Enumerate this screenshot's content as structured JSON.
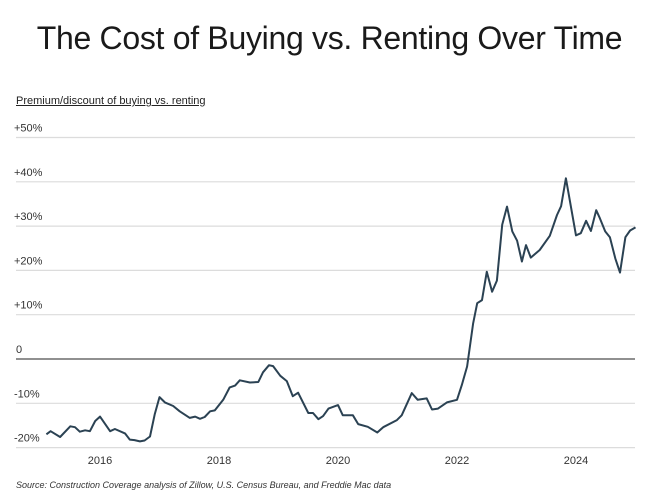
{
  "chart_data": {
    "type": "line",
    "title": "The Cost of Buying vs. Renting Over Time",
    "ylabel": "Premium/discount of buying vs. renting",
    "source": "Source: Construction Coverage analysis of Zillow, U.S. Census Bureau, and Freddie Mac data",
    "ylim": [
      -20,
      50
    ],
    "xlim": [
      2015.1,
      2025.0
    ],
    "yticks": [
      50,
      40,
      30,
      20,
      10,
      0,
      -10,
      -20
    ],
    "ytick_labels": [
      "+50%",
      "+40%",
      "+30%",
      "+20%",
      "+10%",
      "0",
      "-10%",
      "-20%"
    ],
    "xticks": [
      2016,
      2018,
      2020,
      2022,
      2024
    ],
    "xtick_labels": [
      "2016",
      "2018",
      "2020",
      "2022",
      "2024"
    ],
    "grid": true,
    "line_color": "#2b4253",
    "x": [
      2015.1,
      2015.17,
      2015.33,
      2015.5,
      2015.58,
      2015.66,
      2015.75,
      2015.83,
      2015.92,
      2016.0,
      2016.17,
      2016.25,
      2016.42,
      2016.5,
      2016.58,
      2016.67,
      2016.75,
      2016.84,
      2016.92,
      2017.0,
      2017.09,
      2017.23,
      2017.34,
      2017.51,
      2017.6,
      2017.68,
      2017.76,
      2017.85,
      2017.93,
      2018.07,
      2018.18,
      2018.27,
      2018.35,
      2018.52,
      2018.66,
      2018.74,
      2018.84,
      2018.91,
      2019.03,
      2019.14,
      2019.24,
      2019.33,
      2019.5,
      2019.58,
      2019.67,
      2019.75,
      2019.84,
      2020.0,
      2020.08,
      2020.25,
      2020.34,
      2020.5,
      2020.66,
      2020.76,
      2020.99,
      2021.07,
      2021.24,
      2021.34,
      2021.49,
      2021.58,
      2021.68,
      2021.83,
      2022.0,
      2022.08,
      2022.17,
      2022.27,
      2022.34,
      2022.42,
      2022.5,
      2022.59,
      2022.67,
      2022.76,
      2022.84,
      2022.93,
      2023.01,
      2023.09,
      2023.16,
      2023.24,
      2023.39,
      2023.56,
      2023.68,
      2023.75,
      2023.83,
      2024.0,
      2024.08,
      2024.17,
      2024.25,
      2024.34,
      2024.4,
      2024.49,
      2024.57,
      2024.66,
      2024.74,
      2024.83,
      2024.91,
      2025.0
    ],
    "y": [
      -17.0,
      -16.3,
      -17.6,
      -15.2,
      -15.4,
      -16.4,
      -16.1,
      -16.3,
      -14.0,
      -13.0,
      -16.3,
      -15.8,
      -16.8,
      -18.2,
      -18.3,
      -18.6,
      -18.4,
      -17.5,
      -12.5,
      -8.6,
      -9.8,
      -10.6,
      -11.8,
      -13.3,
      -13.0,
      -13.5,
      -13.1,
      -11.8,
      -11.6,
      -9.2,
      -6.4,
      -6.0,
      -4.8,
      -5.3,
      -5.2,
      -3.0,
      -1.4,
      -1.6,
      -3.8,
      -5.0,
      -8.4,
      -7.6,
      -12.2,
      -12.2,
      -13.6,
      -12.9,
      -11.2,
      -10.4,
      -12.7,
      -12.7,
      -14.7,
      -15.3,
      -16.6,
      -15.4,
      -13.8,
      -12.7,
      -7.7,
      -9.2,
      -8.9,
      -11.4,
      -11.2,
      -9.8,
      -9.2,
      -5.9,
      -1.7,
      8.0,
      12.6,
      13.3,
      19.7,
      15.2,
      17.7,
      30.3,
      34.4,
      28.8,
      26.7,
      22.0,
      25.7,
      22.9,
      24.6,
      27.8,
      32.5,
      34.5,
      40.8,
      27.9,
      28.4,
      31.2,
      28.9,
      33.6,
      31.8,
      28.8,
      27.5,
      22.7,
      19.5,
      27.5,
      29.0,
      29.7
    ]
  }
}
